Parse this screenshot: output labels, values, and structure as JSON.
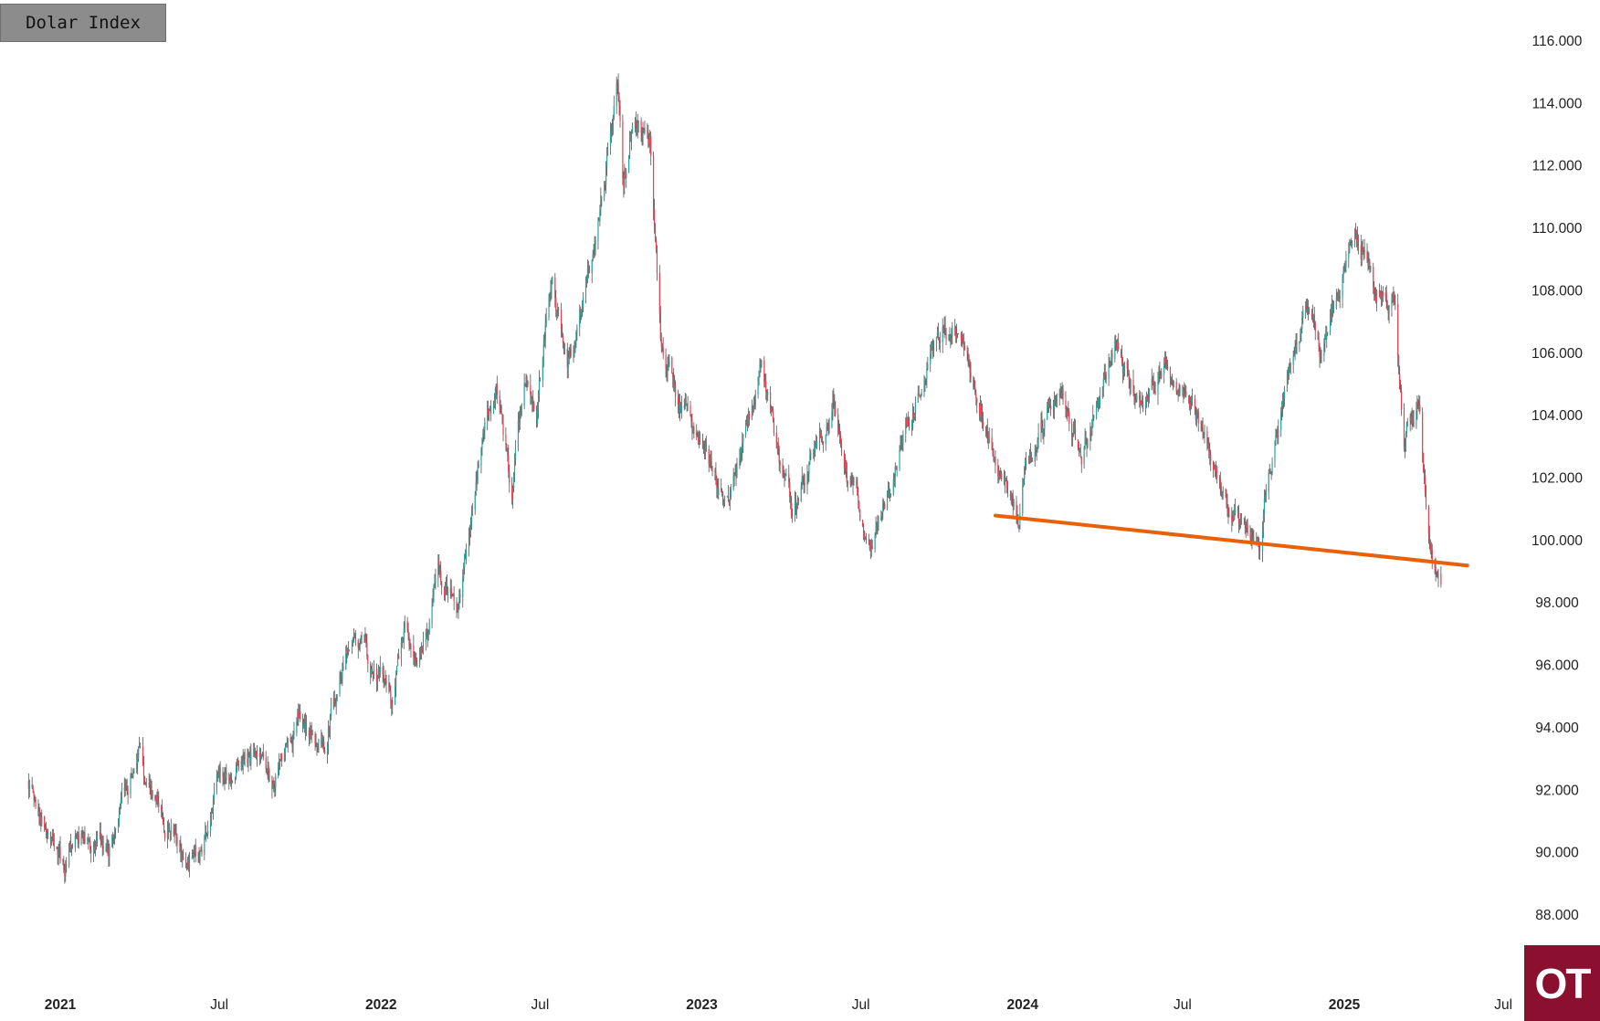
{
  "title": "Dolar Index",
  "logo": {
    "text": "OT",
    "color": "#8b0f2e"
  },
  "colors": {
    "up": "#26a69a",
    "down": "#ef3b4f",
    "wick": "#555555",
    "trendline": "#e8600a"
  },
  "chart_data": {
    "type": "candlestick",
    "title": "Dolar Index",
    "ylim": [
      87,
      117
    ],
    "y_ticks": [
      "88.000",
      "90.000",
      "92.000",
      "94.000",
      "96.000",
      "98.000",
      "100.000",
      "102.000",
      "104.000",
      "106.000",
      "108.000",
      "110.000",
      "112.000",
      "114.000",
      "116.000"
    ],
    "x_ticks": [
      {
        "label": "2021",
        "date": "2021-01-01",
        "major": true
      },
      {
        "label": "Jul",
        "date": "2021-07-01",
        "major": false
      },
      {
        "label": "2022",
        "date": "2022-01-01",
        "major": true
      },
      {
        "label": "Jul",
        "date": "2022-07-01",
        "major": false
      },
      {
        "label": "2023",
        "date": "2023-01-01",
        "major": true
      },
      {
        "label": "Jul",
        "date": "2023-07-01",
        "major": false
      },
      {
        "label": "2024",
        "date": "2024-01-01",
        "major": true
      },
      {
        "label": "Jul",
        "date": "2024-07-01",
        "major": false
      },
      {
        "label": "2025",
        "date": "2025-01-01",
        "major": true
      },
      {
        "label": "Jul",
        "date": "2025-07-01",
        "major": false
      }
    ],
    "x_range": [
      "2020-11-26",
      "2025-07-31"
    ],
    "grid": false,
    "price_path": [
      [
        "2020-11-26",
        92.3
      ],
      [
        "2020-12-01",
        91.8
      ],
      [
        "2020-12-14",
        90.8
      ],
      [
        "2021-01-06",
        89.5
      ],
      [
        "2021-01-20",
        90.3
      ],
      [
        "2021-02-25",
        90.1
      ],
      [
        "2021-03-31",
        93.3
      ],
      [
        "2021-04-15",
        91.7
      ],
      [
        "2021-05-25",
        89.7
      ],
      [
        "2021-06-10",
        90.0
      ],
      [
        "2021-07-01",
        92.5
      ],
      [
        "2021-08-20",
        93.2
      ],
      [
        "2021-09-01",
        92.1
      ],
      [
        "2021-09-30",
        94.3
      ],
      [
        "2021-10-28",
        93.5
      ],
      [
        "2021-11-24",
        96.8
      ],
      [
        "2021-12-15",
        96.4
      ],
      [
        "2022-01-13",
        94.9
      ],
      [
        "2022-01-28",
        97.3
      ],
      [
        "2022-02-10",
        95.5
      ],
      [
        "2022-03-07",
        99.1
      ],
      [
        "2022-03-30",
        97.8
      ],
      [
        "2022-04-28",
        103.4
      ],
      [
        "2022-05-12",
        104.7
      ],
      [
        "2022-05-30",
        101.6
      ],
      [
        "2022-06-14",
        105.3
      ],
      [
        "2022-06-27",
        103.9
      ],
      [
        "2022-07-14",
        108.6
      ],
      [
        "2022-08-01",
        105.4
      ],
      [
        "2022-08-29",
        109.0
      ],
      [
        "2022-09-27",
        114.5
      ],
      [
        "2022-10-04",
        111.0
      ],
      [
        "2022-10-13",
        113.3
      ],
      [
        "2022-11-03",
        112.8
      ],
      [
        "2022-11-15",
        106.6
      ],
      [
        "2022-12-05",
        104.5
      ],
      [
        "2022-12-15",
        103.9
      ],
      [
        "2023-01-18",
        101.9
      ],
      [
        "2023-02-01",
        101.0
      ],
      [
        "2023-03-08",
        105.6
      ],
      [
        "2023-04-13",
        100.9
      ],
      [
        "2023-05-31",
        104.5
      ],
      [
        "2023-06-15",
        102.3
      ],
      [
        "2023-07-14",
        99.6
      ],
      [
        "2023-08-22",
        103.6
      ],
      [
        "2023-10-03",
        107.0
      ],
      [
        "2023-10-30",
        106.0
      ],
      [
        "2023-11-30",
        102.8
      ],
      [
        "2023-12-28",
        100.6
      ],
      [
        "2024-01-03",
        102.3
      ],
      [
        "2024-02-14",
        104.9
      ],
      [
        "2024-03-08",
        102.6
      ],
      [
        "2024-04-16",
        106.3
      ],
      [
        "2024-05-15",
        104.2
      ],
      [
        "2024-06-14",
        105.6
      ],
      [
        "2024-07-18",
        103.8
      ],
      [
        "2024-08-27",
        100.6
      ],
      [
        "2024-09-27",
        100.1
      ],
      [
        "2024-10-02",
        101.2
      ],
      [
        "2024-11-13",
        106.8
      ],
      [
        "2024-11-22",
        107.6
      ],
      [
        "2024-12-06",
        105.8
      ],
      [
        "2025-01-13",
        110.0
      ],
      [
        "2025-02-03",
        108.2
      ],
      [
        "2025-02-28",
        107.4
      ],
      [
        "2025-03-04",
        105.6
      ],
      [
        "2025-03-10",
        103.3
      ],
      [
        "2025-03-27",
        104.3
      ],
      [
        "2025-04-03",
        101.8
      ],
      [
        "2025-04-11",
        99.8
      ],
      [
        "2025-04-21",
        98.9
      ]
    ],
    "annotations": [
      {
        "type": "trendline",
        "from": [
          "2023-12-01",
          100.8
        ],
        "to": [
          "2025-05-21",
          99.2
        ]
      }
    ]
  }
}
